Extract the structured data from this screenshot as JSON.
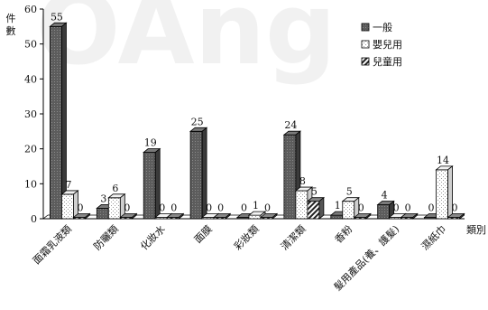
{
  "chart_data": {
    "type": "bar",
    "ylabel": "件數",
    "xlabel": "類別",
    "ylim": [
      0,
      60
    ],
    "yticks": [
      0,
      10,
      20,
      30,
      40,
      50,
      60
    ],
    "categories": [
      "面霜乳液類",
      "防曬類",
      "化妝水",
      "面膜",
      "彩妝類",
      "清潔類",
      "香粉",
      "髮用產品(養、護髮)",
      "濕紙巾"
    ],
    "series": [
      {
        "name": "一般",
        "values": [
          55,
          3,
          19,
          25,
          0,
          24,
          1,
          4,
          0
        ],
        "color": "#5a5a5a"
      },
      {
        "name": "嬰兒用",
        "values": [
          7,
          6,
          0,
          0,
          1,
          8,
          5,
          0,
          14
        ],
        "color": "#ffffff"
      },
      {
        "name": "兒童用",
        "values": [
          0,
          0,
          0,
          0,
          0,
          5,
          0,
          0,
          0
        ],
        "color": "#333333"
      }
    ],
    "legend_position": "top-right",
    "grid": false
  },
  "watermark_text": "OAng"
}
